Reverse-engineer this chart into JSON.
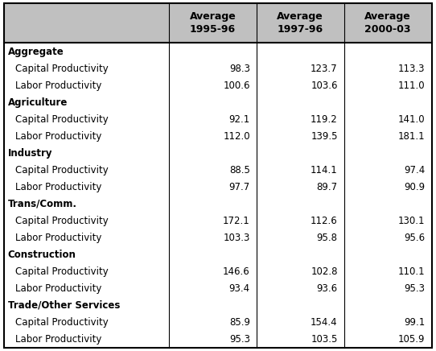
{
  "header_bg": "#c0c0c0",
  "header_text_color": "#000000",
  "col_headers": [
    "",
    "Average\n1995-96",
    "Average\n1997-96",
    "Average\n2000-03"
  ],
  "rows": [
    {
      "label": "Aggregate",
      "bold": true,
      "indent": false,
      "values": [
        null,
        null,
        null
      ]
    },
    {
      "label": "Capital Productivity",
      "bold": false,
      "indent": true,
      "values": [
        98.3,
        123.7,
        113.3
      ]
    },
    {
      "label": "Labor Productivity",
      "bold": false,
      "indent": true,
      "values": [
        100.6,
        103.6,
        111.0
      ]
    },
    {
      "label": "Agriculture",
      "bold": true,
      "indent": false,
      "values": [
        null,
        null,
        null
      ]
    },
    {
      "label": "Capital Productivity",
      "bold": false,
      "indent": true,
      "values": [
        92.1,
        119.2,
        141.0
      ]
    },
    {
      "label": "Labor Productivity",
      "bold": false,
      "indent": true,
      "values": [
        112.0,
        139.5,
        181.1
      ]
    },
    {
      "label": "Industry",
      "bold": true,
      "indent": false,
      "values": [
        null,
        null,
        null
      ]
    },
    {
      "label": "Capital Productivity",
      "bold": false,
      "indent": true,
      "values": [
        88.5,
        114.1,
        97.4
      ]
    },
    {
      "label": "Labor Productivity",
      "bold": false,
      "indent": true,
      "values": [
        97.7,
        89.7,
        90.9
      ]
    },
    {
      "label": "Trans/Comm.",
      "bold": true,
      "indent": false,
      "values": [
        null,
        null,
        null
      ]
    },
    {
      "label": "Capital Productivity",
      "bold": false,
      "indent": true,
      "values": [
        172.1,
        112.6,
        130.1
      ]
    },
    {
      "label": "Labor Productivity",
      "bold": false,
      "indent": true,
      "values": [
        103.3,
        95.8,
        95.6
      ]
    },
    {
      "label": "Construction",
      "bold": true,
      "indent": false,
      "values": [
        null,
        null,
        null
      ]
    },
    {
      "label": "Capital Productivity",
      "bold": false,
      "indent": true,
      "values": [
        146.6,
        102.8,
        110.1
      ]
    },
    {
      "label": "Labor Productivity",
      "bold": false,
      "indent": true,
      "values": [
        93.4,
        93.6,
        95.3
      ]
    },
    {
      "label": "Trade/Other Services",
      "bold": true,
      "indent": false,
      "values": [
        null,
        null,
        null
      ]
    },
    {
      "label": "Capital Productivity",
      "bold": false,
      "indent": true,
      "values": [
        85.9,
        154.4,
        99.1
      ]
    },
    {
      "label": "Labor Productivity",
      "bold": false,
      "indent": true,
      "values": [
        95.3,
        103.5,
        105.9
      ]
    }
  ],
  "font_size": 8.5,
  "header_font_size": 9.0,
  "bg_color": "#ffffff",
  "border_color": "#000000"
}
